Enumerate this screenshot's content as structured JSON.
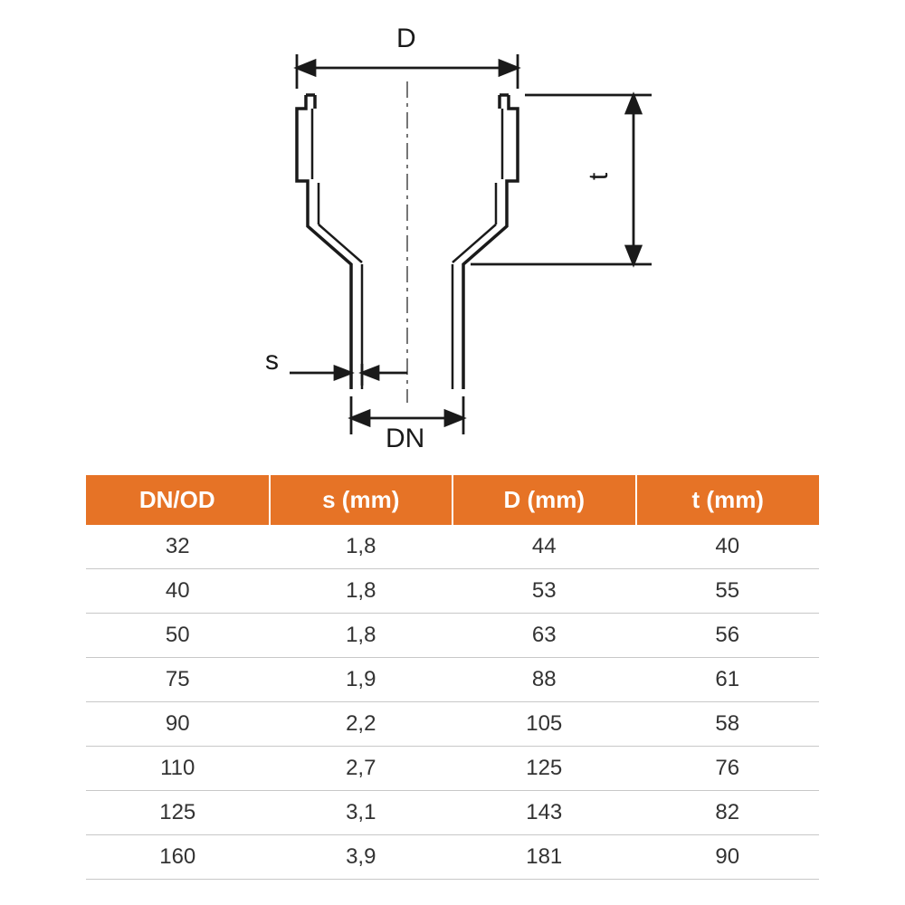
{
  "diagram": {
    "labels": {
      "D": "D",
      "t": "t",
      "s": "s",
      "DN": "DN"
    },
    "stroke_color": "#1a1a1a",
    "stroke_width_main": 3.5,
    "stroke_width_thin": 2.5,
    "background": "#ffffff"
  },
  "table": {
    "header_bg": "#e67326",
    "header_fg": "#ffffff",
    "row_border": "#c8c8c8",
    "cell_color": "#333333",
    "header_fontsize": 26,
    "cell_fontsize": 24,
    "columns": [
      "DN/OD",
      "s (mm)",
      "D (mm)",
      "t (mm)"
    ],
    "rows": [
      [
        "32",
        "1,8",
        "44",
        "40"
      ],
      [
        "40",
        "1,8",
        "53",
        "55"
      ],
      [
        "50",
        "1,8",
        "63",
        "56"
      ],
      [
        "75",
        "1,9",
        "88",
        "61"
      ],
      [
        "90",
        "2,2",
        "105",
        "58"
      ],
      [
        "110",
        "2,7",
        "125",
        "76"
      ],
      [
        "125",
        "3,1",
        "143",
        "82"
      ],
      [
        "160",
        "3,9",
        "181",
        "90"
      ]
    ]
  }
}
